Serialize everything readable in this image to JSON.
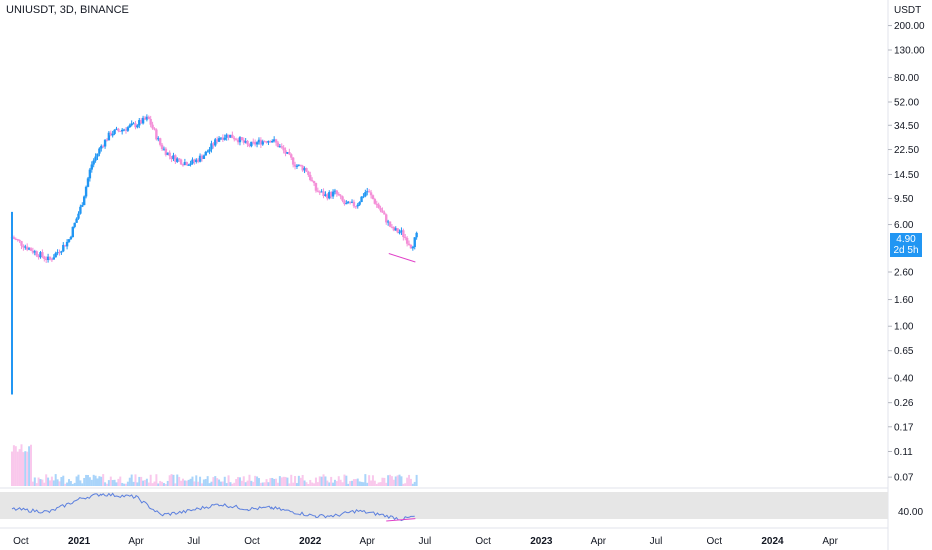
{
  "header": {
    "title": "UNIUSDT, 3D, BINANCE"
  },
  "price_axis": {
    "unit": "USDT",
    "ticks": [
      "200.00",
      "130.00",
      "80.00",
      "52.00",
      "34.50",
      "22.50",
      "14.50",
      "9.50",
      "6.00",
      "2.60",
      "1.60",
      "1.00",
      "0.65",
      "0.40",
      "0.26",
      "0.17",
      "0.11",
      "0.07"
    ],
    "current_price": "4.90",
    "countdown": "2d 5h"
  },
  "rsi_axis": {
    "tick": "40.00"
  },
  "time_axis": {
    "labels": [
      "Oct",
      "2021",
      "Apr",
      "Jul",
      "Oct",
      "2022",
      "Apr",
      "Jul",
      "Oct",
      "2023",
      "Apr",
      "Jul",
      "Oct",
      "2024",
      "Apr"
    ],
    "bold": [
      "2021",
      "2022",
      "2023",
      "2024"
    ]
  },
  "colors": {
    "up": "#2196f3",
    "down": "#f48fd7",
    "price_tag": "#2196f3",
    "rsi_line": "#5b7fde",
    "rsi_band": "#e6e6e6",
    "trendline": "#e040c8"
  },
  "chart_data": {
    "type": "candlestick",
    "title": "UNIUSDT, 3D, BINANCE",
    "y_unit": "USDT",
    "y_scale": "log",
    "ylim": [
      0.06,
      250
    ],
    "x_range": [
      "2020-09-17",
      "2024-05-15"
    ],
    "series": [
      {
        "name": "price",
        "x": [
          "2020-09-17",
          "2020-10-15",
          "2020-11-15",
          "2020-12-15",
          "2021-01-05",
          "2021-01-20",
          "2021-02-05",
          "2021-02-20",
          "2021-03-10",
          "2021-04-01",
          "2021-04-20",
          "2021-05-10",
          "2021-05-25",
          "2021-06-15",
          "2021-07-01",
          "2021-07-20",
          "2021-08-10",
          "2021-08-25",
          "2021-09-10",
          "2021-09-25",
          "2021-10-15",
          "2021-11-01",
          "2021-11-20",
          "2021-12-10",
          "2021-12-25",
          "2022-01-10",
          "2022-01-25",
          "2022-02-10",
          "2022-02-25",
          "2022-03-15",
          "2022-03-31",
          "2022-04-20",
          "2022-05-10",
          "2022-05-25",
          "2022-06-10",
          "2022-06-18"
        ],
        "close": [
          4.8,
          3.9,
          3.2,
          4.5,
          8.5,
          17,
          24,
          30,
          32,
          35,
          39,
          24,
          20,
          18,
          18,
          21,
          28,
          29,
          27,
          24,
          26,
          27,
          22,
          17,
          16,
          11,
          10,
          10.5,
          8.5,
          8.5,
          11,
          8,
          5.5,
          5.2,
          4.1,
          4.9
        ]
      },
      {
        "name": "RSI",
        "x": [
          "2020-09-17",
          "2020-11-15",
          "2021-01-05",
          "2021-02-05",
          "2021-04-01",
          "2021-05-10",
          "2021-06-15",
          "2021-08-10",
          "2021-09-25",
          "2021-11-01",
          "2021-12-10",
          "2022-01-10",
          "2022-02-10",
          "2022-03-15",
          "2022-04-20",
          "2022-05-25",
          "2022-06-18"
        ],
        "values": [
          50,
          45,
          68,
          75,
          70,
          40,
          45,
          58,
          50,
          52,
          44,
          38,
          39,
          47,
          41,
          33,
          38
        ]
      }
    ]
  }
}
